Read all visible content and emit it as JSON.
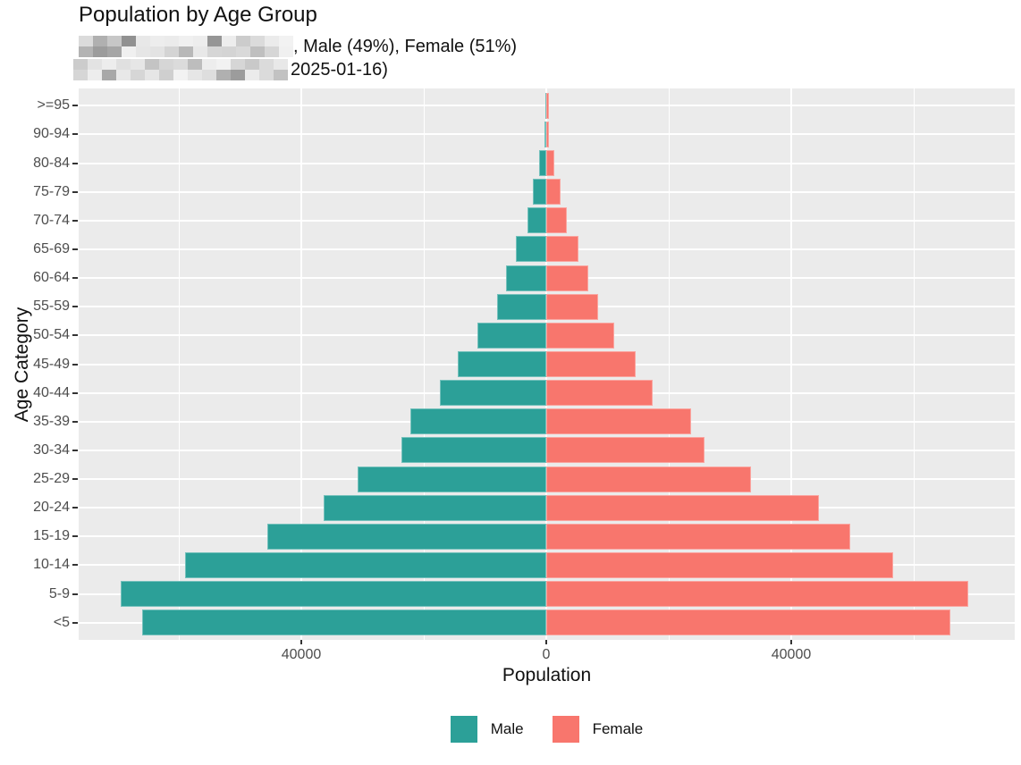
{
  "header": {
    "title": "Population by Age Group",
    "subtitle_line1_visible": ", Male (49%), Female (51%)",
    "subtitle_line2_visible": "2025-01-16)"
  },
  "colors": {
    "male": "#2CA098",
    "female": "#F8766D",
    "panel_background": "#EBEBEB",
    "gridline": "#FFFFFF",
    "axis_text": "#4D4D4D",
    "tick_mark": "#333333"
  },
  "chart_data": {
    "type": "bar",
    "variant": "population-pyramid-horizontal",
    "title": "Population by Age Group",
    "xlabel": "Population",
    "ylabel": "Age Category",
    "categories_top_to_bottom": [
      ">=95",
      "90-94",
      "80-84",
      "75-79",
      "70-74",
      "65-69",
      "60-64",
      "55-59",
      "50-54",
      "45-49",
      "40-44",
      "35-39",
      "30-34",
      "25-29",
      "20-24",
      "15-19",
      "10-14",
      "5-9",
      "<5"
    ],
    "series": [
      {
        "name": "Male",
        "side": "left",
        "color": "#2CA098",
        "values": [
          200,
          300,
          1100,
          2200,
          3100,
          4900,
          6500,
          8100,
          11300,
          14400,
          17400,
          22200,
          23700,
          30800,
          36300,
          45500,
          59000,
          69500,
          66000
        ]
      },
      {
        "name": "Female",
        "side": "right",
        "color": "#F8766D",
        "values": [
          400,
          450,
          1300,
          2400,
          3300,
          5200,
          6800,
          8400,
          11100,
          14600,
          17400,
          23700,
          25800,
          33400,
          44500,
          49600,
          56700,
          68900,
          66000
        ]
      }
    ],
    "x_tick_values": [
      -40000,
      0,
      40000
    ],
    "x_tick_labels": [
      "40000",
      "0",
      "40000"
    ],
    "x_major_gridlines": [
      -40000,
      0,
      40000
    ],
    "x_minor_gridlines": [
      -60000,
      -20000,
      20000,
      60000
    ],
    "xlim": [
      -76400,
      76500
    ],
    "grid": true,
    "legend_position": "bottom"
  },
  "legend": {
    "items": [
      {
        "label": "Male",
        "color": "#2CA098"
      },
      {
        "label": "Female",
        "color": "#F8766D"
      }
    ]
  }
}
